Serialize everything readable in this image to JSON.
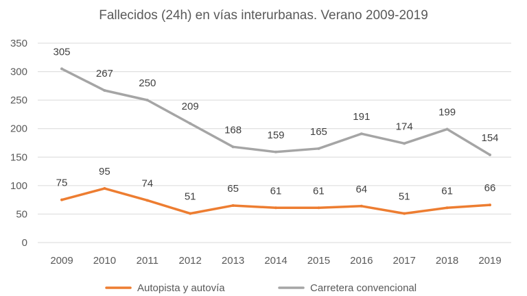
{
  "chart_data": {
    "type": "line",
    "title": "Fallecidos (24h) en vías interurbanas. Verano 2009-2019",
    "x": [
      "2009",
      "2010",
      "2011",
      "2012",
      "2013",
      "2014",
      "2015",
      "2016",
      "2017",
      "2018",
      "2019"
    ],
    "series": [
      {
        "name": "Autopista y autovía",
        "color": "#ed7d31",
        "values": [
          75,
          95,
          74,
          51,
          65,
          61,
          61,
          64,
          51,
          61,
          66
        ]
      },
      {
        "name": "Carretera convencional",
        "color": "#a5a5a5",
        "values": [
          305,
          267,
          250,
          209,
          168,
          159,
          165,
          191,
          174,
          199,
          154
        ]
      }
    ],
    "ylim": [
      0,
      350
    ],
    "yticks": [
      0,
      50,
      100,
      150,
      200,
      250,
      300,
      350
    ],
    "grid": true,
    "legend": "bottom",
    "xlabel": "",
    "ylabel": ""
  }
}
